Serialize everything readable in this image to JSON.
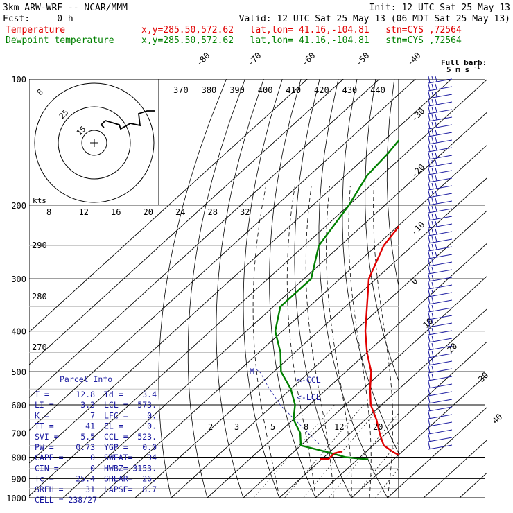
{
  "header": {
    "model": "3km ARW-WRF -- NCAR/MMM",
    "init": "Init: 12 UTC Sat 25 May 13",
    "fcst": "Fcst:     0 h",
    "valid": "Valid: 12 UTC Sat 25 May 13 (06 MDT Sat 25 May 13)",
    "temp_label": "Temperature",
    "temp_info": "x,y=285.50,572.62   lat,lon= 41.16,-104.81   stn=CYS ,72564",
    "dew_label": "Dewpoint temperature",
    "dew_info": "x,y=285.50,572.62   lat,lon= 41.16,-104.81   stn=CYS ,72564"
  },
  "colors": {
    "temperature": "#e00000",
    "dewpoint": "#008000",
    "parcel": "#1a1aa0",
    "grid": "#000000"
  },
  "barb_legend": {
    "line1": "Full barb:",
    "line2": "5 m s",
    "exp": "-1"
  },
  "hodograph": {
    "units": "kts",
    "ring_labels": [
      "25",
      "15"
    ],
    "barb_label": "8"
  },
  "parcel_info": {
    "title": "Parcel Info",
    "rows": [
      [
        "T  =",
        "12.8",
        "Td =",
        "3.4"
      ],
      [
        "LI =",
        "3.3",
        "LCL =",
        "573."
      ],
      [
        "K  =",
        "7",
        "LFC =",
        "0."
      ],
      [
        "TT =",
        "41",
        "EL  =",
        "0."
      ],
      [
        "SVI =",
        "5.5",
        "CCL =",
        "523."
      ],
      [
        "PW =",
        "0.73",
        "YGP =",
        "0.0"
      ],
      [
        "CAPE =",
        "0",
        "SWEAT=",
        "94"
      ],
      [
        "CIN  =",
        "0",
        "HWBZ=",
        "3153."
      ],
      [
        "Tc =",
        "25.4",
        "SHEAR=",
        "26."
      ],
      [
        "SREH =",
        "31",
        "LAPSE=",
        "8.7"
      ],
      [
        "CELL = 238/27",
        "",
        "",
        ""
      ]
    ]
  },
  "markers": {
    "ccl": "<-CCL",
    "lcl": "<-LCL"
  },
  "chart_data": {
    "type": "line",
    "diagram": "skew-T log-P",
    "pressure_levels": [
      "100",
      "200",
      "300",
      "400",
      "500",
      "600",
      "700",
      "800",
      "900",
      "1000"
    ],
    "isotherm_labels": [
      "-80",
      "-70",
      "-60",
      "-50",
      "-40",
      "-30",
      "-20",
      "-10",
      "0",
      "10",
      "20",
      "30",
      "40"
    ],
    "theta_labels": [
      "370",
      "380",
      "390",
      "400",
      "410",
      "420",
      "430",
      "440"
    ],
    "mixing_ratio_labels": [
      "2",
      "3",
      "5",
      "8",
      "12",
      "20"
    ],
    "hodo_speed_labels": [
      "8",
      "12",
      "16",
      "20",
      "24",
      "28",
      "32"
    ],
    "height_labels": [
      "290",
      "280",
      "270"
    ],
    "series": [
      {
        "name": "Temperature",
        "points": [
          [
            100,
            -58
          ],
          [
            120,
            -57
          ],
          [
            150,
            -57
          ],
          [
            170,
            -58
          ],
          [
            190,
            -61
          ],
          [
            200,
            -61
          ],
          [
            220,
            -60
          ],
          [
            250,
            -58
          ],
          [
            300,
            -52
          ],
          [
            400,
            -37
          ],
          [
            450,
            -30
          ],
          [
            500,
            -23
          ],
          [
            550,
            -18
          ],
          [
            600,
            -13
          ],
          [
            650,
            -7
          ],
          [
            700,
            -2
          ],
          [
            720,
            0
          ],
          [
            750,
            3
          ],
          [
            780,
            8
          ],
          [
            800,
            12
          ],
          [
            810,
            13
          ]
        ]
      },
      {
        "name": "Dewpoint temperature",
        "points": [
          [
            100,
            -85
          ],
          [
            130,
            -87
          ],
          [
            150,
            -85
          ],
          [
            170,
            -84
          ],
          [
            200,
            -80
          ],
          [
            250,
            -76
          ],
          [
            300,
            -68
          ],
          [
            350,
            -68
          ],
          [
            400,
            -62
          ],
          [
            450,
            -54
          ],
          [
            500,
            -48
          ],
          [
            550,
            -40
          ],
          [
            600,
            -34
          ],
          [
            650,
            -30
          ],
          [
            700,
            -24
          ],
          [
            750,
            -20
          ],
          [
            780,
            -10
          ],
          [
            800,
            -4
          ],
          [
            810,
            3
          ]
        ]
      }
    ]
  }
}
